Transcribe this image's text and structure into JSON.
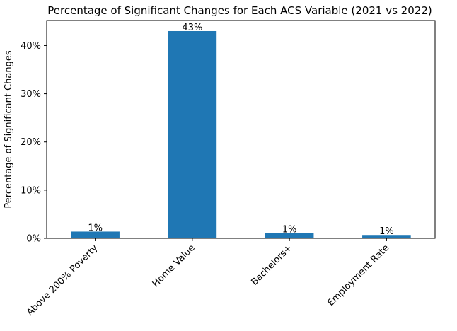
{
  "chart_data": {
    "type": "bar",
    "title": "Percentage of Significant Changes for Each ACS Variable (2021 vs 2022)",
    "xlabel": "",
    "ylabel": "Percentage of Significant Changes",
    "categories": [
      "Above 200% Poverty",
      "Home Value",
      "Bachelors+",
      "Employment Rate"
    ],
    "values": [
      1.4,
      43.0,
      1.1,
      0.7
    ],
    "value_labels": [
      "1%",
      "43%",
      "1%",
      "1%"
    ],
    "ylim": [
      0,
      45.2
    ],
    "yticks": [
      0,
      10,
      20,
      30,
      40
    ],
    "ytick_labels": [
      "0%",
      "10%",
      "20%",
      "30%",
      "40%"
    ],
    "bar_color": "#1f77b4",
    "grid": false,
    "legend": "none"
  }
}
